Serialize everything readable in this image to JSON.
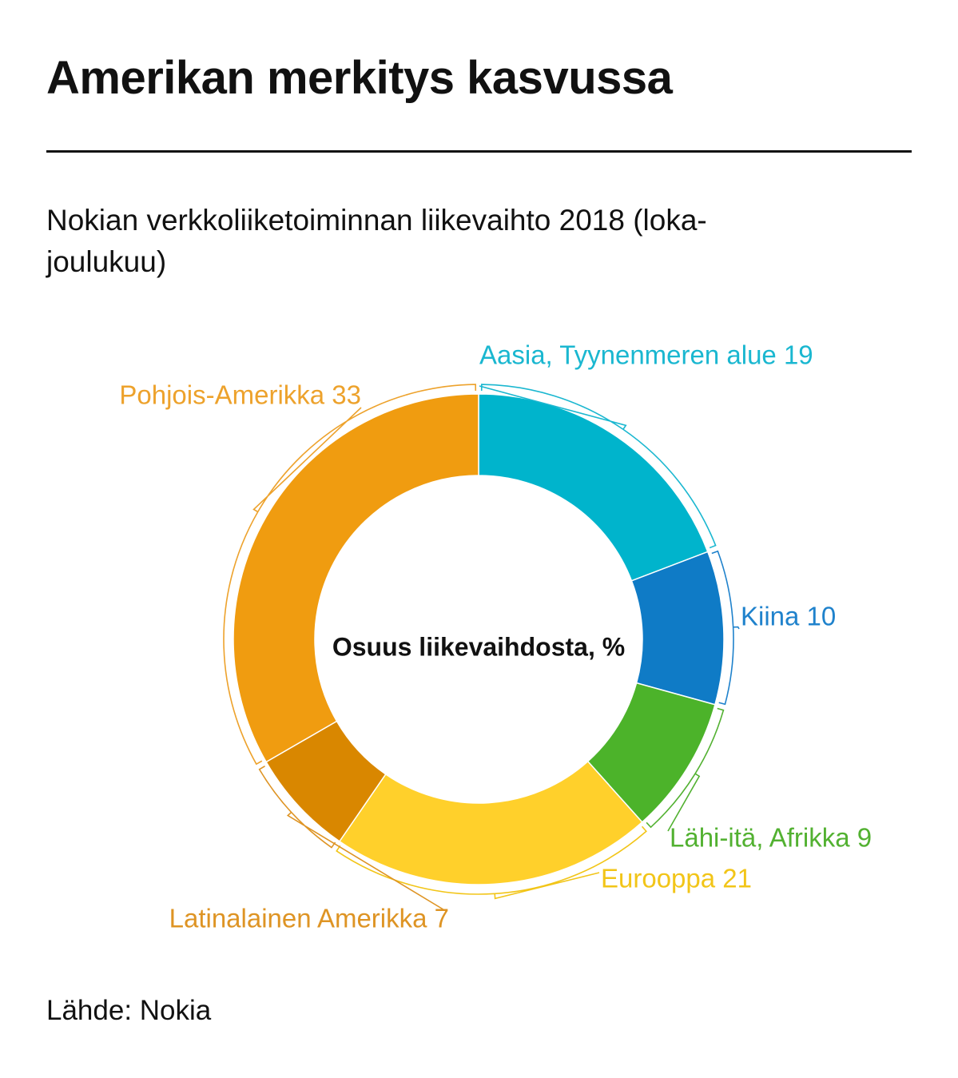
{
  "title": "Amerikan merkitys kasvussa",
  "subtitle": "Nokian verkkoliiketoiminnan liikevaihto 2018 (loka-joulukuu)",
  "source": "Lähde: Nokia",
  "chart_data": {
    "type": "pie",
    "donut": true,
    "center_label": "Osuus liikevaihdosta, %",
    "legend": "none",
    "slices": [
      {
        "label": "Aasia, Tyynenmeren alue",
        "value": 19,
        "display": "Aasia, Tyynenmeren alue 19",
        "color": "#00b4cc",
        "label_color": "#1ab7d0"
      },
      {
        "label": "Kiina",
        "value": 10,
        "display": "Kiina 10",
        "color": "#0f7bc6",
        "label_color": "#1f82cc"
      },
      {
        "label": "Lähi-itä, Afrikka",
        "value": 9,
        "display": "Lähi-itä, Afrikka 9",
        "color": "#4cb32a",
        "label_color": "#52b131"
      },
      {
        "label": "Eurooppa",
        "value": 21,
        "display": "Eurooppa 21",
        "color": "#ffd02b",
        "label_color": "#f2c518"
      },
      {
        "label": "Latinalainen Amerikka",
        "value": 7,
        "display": "Latinalainen Amerikka 7",
        "color": "#d98700",
        "label_color": "#de9424"
      },
      {
        "label": "Pohjois-Amerikka",
        "value": 33,
        "display": "Pohjois-Amerikka 33",
        "color": "#f09c10",
        "label_color": "#eda22c"
      }
    ]
  }
}
